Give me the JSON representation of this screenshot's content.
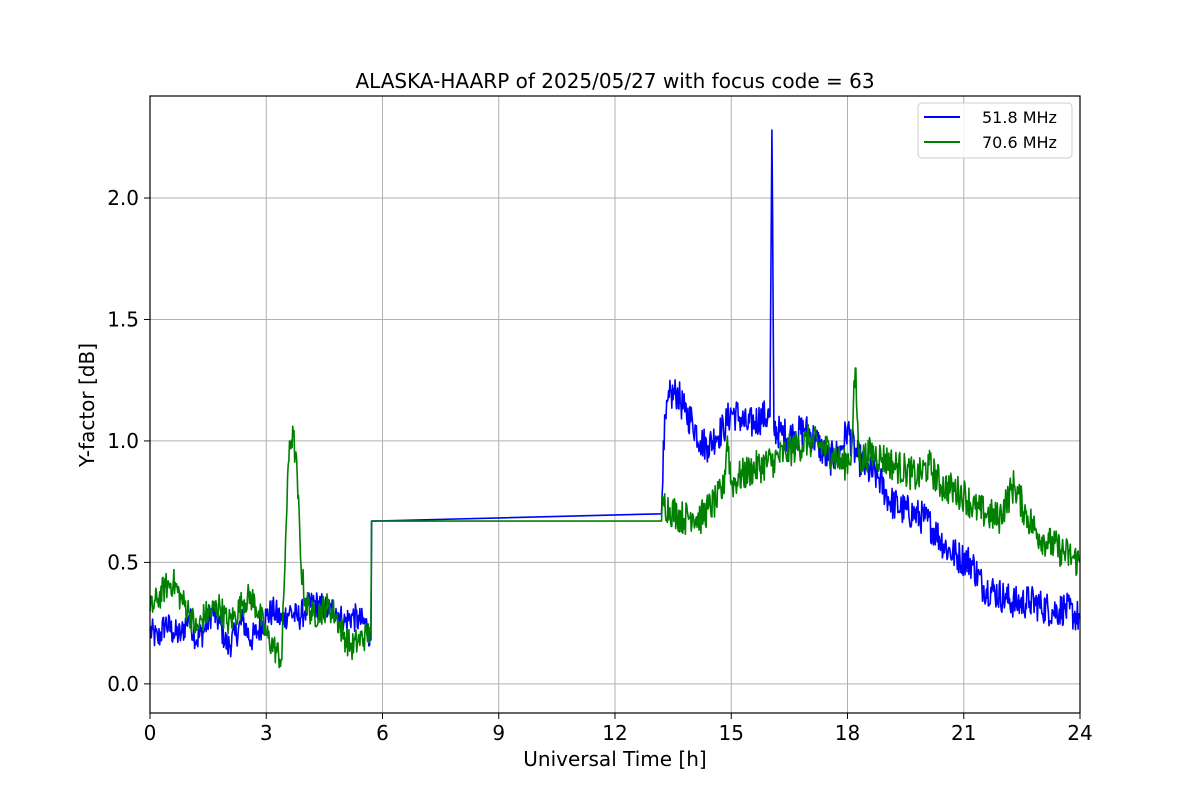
{
  "chart_data": {
    "type": "line",
    "title": "ALASKA-HAARP of 2025/05/27 with focus code = 63",
    "xlabel": "Universal Time [h]",
    "ylabel": "Y-factor [dB]",
    "xlim": [
      0,
      24
    ],
    "ylim": [
      -0.12,
      2.42
    ],
    "xticks": [
      0,
      3,
      6,
      9,
      12,
      15,
      18,
      21,
      24
    ],
    "yticks": [
      0.0,
      0.5,
      1.0,
      1.5,
      2.0
    ],
    "xtick_labels": [
      "0",
      "3",
      "6",
      "9",
      "12",
      "15",
      "18",
      "21",
      "24"
    ],
    "ytick_labels": [
      "0.0",
      "0.5",
      "1.0",
      "1.5",
      "2.0"
    ],
    "grid": true,
    "legend_position": "top-right",
    "series": [
      {
        "name": "51.8 MHz",
        "color": "#0000ff",
        "x": [
          0.0,
          0.2,
          0.4,
          0.6,
          0.8,
          1.0,
          1.2,
          1.4,
          1.6,
          1.8,
          2.0,
          2.2,
          2.4,
          2.6,
          2.8,
          3.0,
          3.2,
          3.4,
          3.6,
          3.8,
          4.0,
          4.2,
          4.4,
          4.6,
          4.8,
          5.0,
          5.2,
          5.4,
          5.6,
          5.7,
          5.72,
          13.2,
          13.25,
          13.4,
          13.6,
          13.8,
          14.0,
          14.2,
          14.4,
          14.6,
          14.8,
          15.0,
          15.2,
          15.4,
          15.6,
          15.8,
          16.0,
          16.05,
          16.1,
          16.3,
          16.6,
          16.9,
          17.2,
          17.5,
          17.8,
          18.0,
          18.2,
          18.5,
          18.8,
          19.1,
          19.4,
          19.7,
          20.0,
          20.3,
          20.6,
          20.9,
          21.2,
          21.5,
          21.8,
          22.1,
          22.4,
          22.7,
          23.0,
          23.3,
          23.6,
          24.0
        ],
        "y": [
          0.22,
          0.18,
          0.25,
          0.21,
          0.2,
          0.28,
          0.18,
          0.22,
          0.3,
          0.25,
          0.15,
          0.2,
          0.26,
          0.18,
          0.22,
          0.28,
          0.3,
          0.26,
          0.3,
          0.27,
          0.3,
          0.33,
          0.32,
          0.3,
          0.31,
          0.25,
          0.28,
          0.26,
          0.24,
          0.18,
          0.67,
          0.7,
          1.0,
          1.18,
          1.2,
          1.12,
          1.08,
          1.0,
          0.98,
          1.02,
          1.05,
          1.12,
          1.1,
          1.06,
          1.08,
          1.1,
          1.1,
          2.28,
          1.05,
          1.03,
          1.02,
          1.05,
          1.0,
          0.92,
          0.95,
          1.05,
          0.95,
          0.88,
          0.85,
          0.75,
          0.72,
          0.7,
          0.68,
          0.62,
          0.55,
          0.52,
          0.5,
          0.4,
          0.38,
          0.35,
          0.33,
          0.34,
          0.32,
          0.3,
          0.31,
          0.27
        ]
      },
      {
        "name": "70.6 MHz",
        "color": "#008000",
        "x": [
          0.0,
          0.2,
          0.4,
          0.6,
          0.8,
          1.0,
          1.2,
          1.4,
          1.6,
          1.8,
          2.0,
          2.2,
          2.4,
          2.6,
          2.8,
          3.0,
          3.2,
          3.4,
          3.5,
          3.6,
          3.7,
          3.8,
          3.9,
          4.0,
          4.2,
          4.4,
          4.6,
          4.8,
          5.0,
          5.2,
          5.4,
          5.6,
          5.7,
          5.72,
          13.2,
          13.25,
          13.4,
          13.6,
          13.8,
          14.0,
          14.2,
          14.4,
          14.6,
          14.8,
          14.9,
          15.0,
          15.2,
          15.5,
          15.8,
          16.1,
          16.4,
          16.7,
          17.0,
          17.3,
          17.6,
          17.9,
          18.1,
          18.2,
          18.3,
          18.6,
          18.9,
          19.2,
          19.5,
          19.8,
          20.1,
          20.4,
          20.7,
          21.0,
          21.3,
          21.6,
          21.9,
          22.1,
          22.3,
          22.6,
          22.9,
          23.2,
          23.5,
          23.8,
          24.0
        ],
        "y": [
          0.3,
          0.35,
          0.4,
          0.42,
          0.35,
          0.3,
          0.22,
          0.28,
          0.3,
          0.32,
          0.25,
          0.28,
          0.34,
          0.36,
          0.3,
          0.2,
          0.15,
          0.1,
          0.6,
          1.0,
          1.02,
          0.85,
          0.48,
          0.35,
          0.28,
          0.3,
          0.32,
          0.28,
          0.2,
          0.15,
          0.18,
          0.2,
          0.22,
          0.67,
          0.67,
          0.75,
          0.72,
          0.7,
          0.68,
          0.7,
          0.68,
          0.72,
          0.75,
          0.8,
          1.02,
          0.82,
          0.85,
          0.88,
          0.9,
          0.92,
          0.95,
          0.98,
          1.0,
          0.98,
          0.95,
          0.9,
          0.95,
          1.3,
          0.92,
          0.95,
          0.93,
          0.9,
          0.88,
          0.85,
          0.9,
          0.82,
          0.8,
          0.78,
          0.72,
          0.7,
          0.68,
          0.75,
          0.82,
          0.7,
          0.62,
          0.58,
          0.55,
          0.52,
          0.5
        ]
      }
    ]
  }
}
